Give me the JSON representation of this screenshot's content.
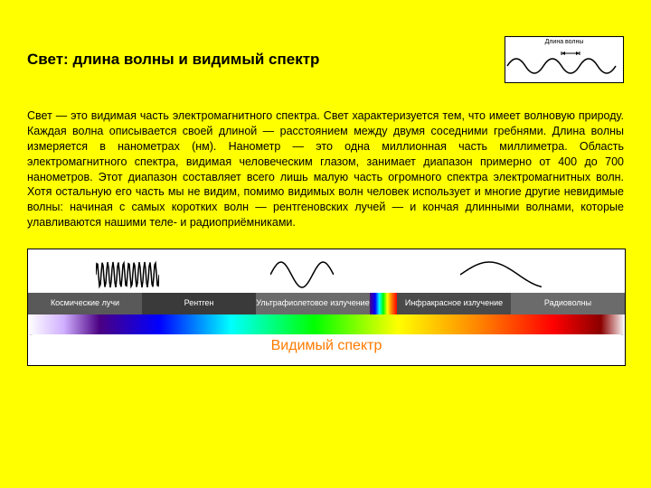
{
  "title": "Свет: длина волны и видимый спектр",
  "waveDiagram": {
    "label": "Длина волны",
    "stroke": "#000000"
  },
  "bodyText": "Свет — это видимая часть электромагнитного спектра. Свет характеризуется тем, что имеет волновую природу. Каждая волна описывается своей длиной — расстоянием между двумя соседними гребнями. Длина волны измеряется в нанометрах (нм). Нанометр — это одна миллионная часть миллиметра. Область электромагнитного спектра, видимая человеческим глазом, занимает диапазон примерно от 400 до 700 нанометров. Этот диапазон составляет всего лишь малую часть огромного спектра электромагнитных волн. Хотя остальную его часть мы не видим, помимо видимых волн человек использует и многие другие невидимые волны: начиная с самых коротких волн — рентгеновских лучей — и кончая длинными волнами, которые улавливаются нашими теле- и радиоприёмниками.",
  "spectrum": {
    "bands": [
      {
        "label": "Космические лучи",
        "bg": "#595959"
      },
      {
        "label": "Рентген",
        "bg": "#3a3a3a"
      },
      {
        "label": "Ультрафиолетовое излучение",
        "bg": "#6b6b6b"
      },
      {
        "label": "",
        "bg": "rainbow"
      },
      {
        "label": "Инфракрасное излучение",
        "bg": "#4a4a4a"
      },
      {
        "label": "Радиоволны",
        "bg": "#6b6b6b"
      }
    ],
    "visibleLabel": "Видимый спектр",
    "waveIcons": {
      "dense": {
        "cycles": 12,
        "amp": 14,
        "stroke": "#000"
      },
      "mid": {
        "cycles": 1.5,
        "amp": 14,
        "stroke": "#000"
      },
      "long": {
        "cycles": 0.7,
        "amp": 14,
        "stroke": "#000"
      }
    },
    "labelColor": "#ff7b00",
    "labelFontSize": 16
  }
}
